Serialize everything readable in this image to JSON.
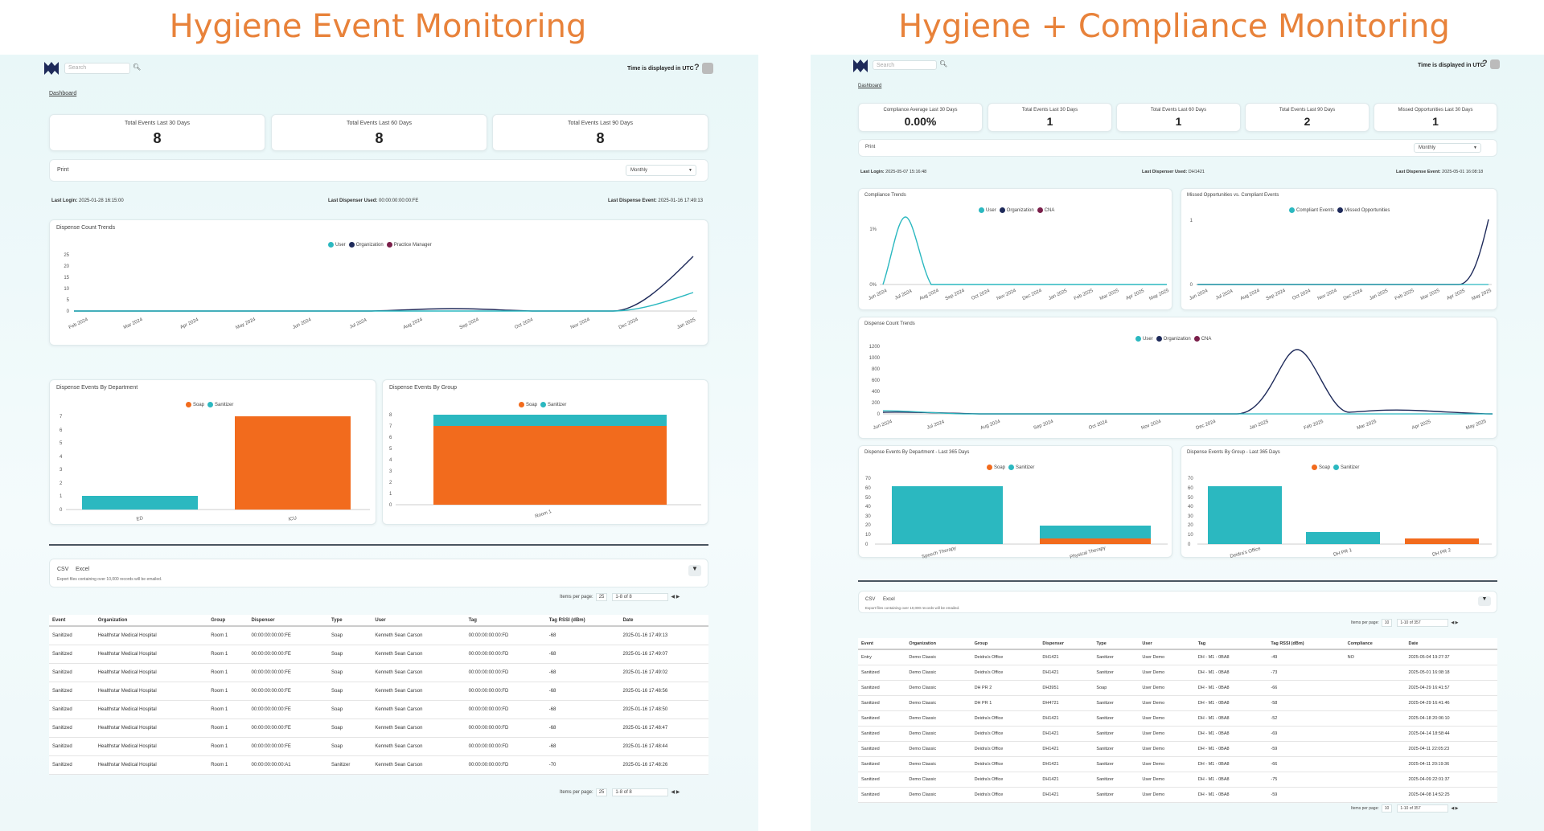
{
  "titles": {
    "left": "Hygiene Event Monitoring",
    "right": "Hygiene + Compliance Monitoring"
  },
  "colors": {
    "title": "#e8823a",
    "teal": "#2bb8c0",
    "navy": "#1e2a5a",
    "maroon": "#7a1f4a",
    "orange": "#f26b1d"
  },
  "left": {
    "search_placeholder": "Search",
    "utc": "Time is displayed in UTC",
    "help": "?",
    "breadcrumb": "Dashboard",
    "stats": [
      {
        "label": "Total Events Last 30 Days",
        "value": "8"
      },
      {
        "label": "Total Events Last 60 Days",
        "value": "8"
      },
      {
        "label": "Total Events Last 90 Days",
        "value": "8"
      }
    ],
    "print": "Print",
    "period": "Monthly",
    "last_login_label": "Last Login:",
    "last_login": "2025-01-28 16:15:00",
    "last_dispenser_label": "Last Dispenser Used:",
    "last_dispenser": "00:00:00:00:00:FE",
    "last_event_label": "Last Dispense Event:",
    "last_event": "2025-01-16 17:49:13",
    "trend": {
      "title": "Dispense Count Trends",
      "legend": [
        "User",
        "Organization",
        "Practice Manager"
      ],
      "yticks": [
        "25",
        "20",
        "15",
        "10",
        "5",
        "0"
      ],
      "xticks": [
        "Feb 2024",
        "Mar 2024",
        "Apr 2024",
        "May 2024",
        "Jun 2024",
        "Jul 2024",
        "Aug 2024",
        "Sep 2024",
        "Oct 2024",
        "Nov 2024",
        "Dec 2024",
        "Jan 2025"
      ]
    },
    "dept": {
      "title": "Dispense Events By Department",
      "legend": [
        "Soap",
        "Sanitizer"
      ],
      "yticks": [
        "7",
        "6",
        "5",
        "4",
        "3",
        "2",
        "1",
        "0"
      ],
      "categories": [
        "ED",
        "ICU"
      ]
    },
    "group": {
      "title": "Dispense Events By Group",
      "legend": [
        "Soap",
        "Sanitizer"
      ],
      "yticks": [
        "8",
        "7",
        "6",
        "5",
        "4",
        "3",
        "2",
        "1",
        "0"
      ],
      "categories": [
        "Room 1"
      ]
    },
    "export": {
      "csv": "CSV",
      "excel": "Excel",
      "note": "Export files containing over 10,000 records will be emailed."
    },
    "pager": {
      "label": "Items per page:",
      "size": "25",
      "range": "1-8 of 8"
    },
    "table": {
      "headers": [
        "Event",
        "Organization",
        "Group",
        "Dispenser",
        "Type",
        "User",
        "Tag",
        "Tag RSSI (dBm)",
        "Date"
      ],
      "rows": [
        [
          "Sanitized",
          "Healthstar Medical Hospital",
          "Room 1",
          "00:00:00:00:00:FE",
          "Soap",
          "Kenneth Sean Carson",
          "00:00:00:00:00:FD",
          "-68",
          "2025-01-16 17:49:13"
        ],
        [
          "Sanitized",
          "Healthstar Medical Hospital",
          "Room 1",
          "00:00:00:00:00:FE",
          "Soap",
          "Kenneth Sean Carson",
          "00:00:00:00:00:FD",
          "-68",
          "2025-01-16 17:49:07"
        ],
        [
          "Sanitized",
          "Healthstar Medical Hospital",
          "Room 1",
          "00:00:00:00:00:FE",
          "Soap",
          "Kenneth Sean Carson",
          "00:00:00:00:00:FD",
          "-68",
          "2025-01-16 17:49:02"
        ],
        [
          "Sanitized",
          "Healthstar Medical Hospital",
          "Room 1",
          "00:00:00:00:00:FE",
          "Soap",
          "Kenneth Sean Carson",
          "00:00:00:00:00:FD",
          "-68",
          "2025-01-16 17:48:56"
        ],
        [
          "Sanitized",
          "Healthstar Medical Hospital",
          "Room 1",
          "00:00:00:00:00:FE",
          "Soap",
          "Kenneth Sean Carson",
          "00:00:00:00:00:FD",
          "-68",
          "2025-01-16 17:48:50"
        ],
        [
          "Sanitized",
          "Healthstar Medical Hospital",
          "Room 1",
          "00:00:00:00:00:FE",
          "Soap",
          "Kenneth Sean Carson",
          "00:00:00:00:00:FD",
          "-68",
          "2025-01-16 17:48:47"
        ],
        [
          "Sanitized",
          "Healthstar Medical Hospital",
          "Room 1",
          "00:00:00:00:00:FE",
          "Soap",
          "Kenneth Sean Carson",
          "00:00:00:00:00:FD",
          "-68",
          "2025-01-16 17:48:44"
        ],
        [
          "Sanitized",
          "Healthstar Medical Hospital",
          "Room 1",
          "00:00:00:00:00:A1",
          "Sanitizer",
          "Kenneth Sean Carson",
          "00:00:00:00:00:FD",
          "-70",
          "2025-01-16 17:48:26"
        ]
      ]
    }
  },
  "right": {
    "search_placeholder": "Search",
    "utc": "Time is displayed in UTC",
    "help": "?",
    "breadcrumb": "Dashboard",
    "stats": [
      {
        "label": "Compliance Average Last 30 Days",
        "value": "0.00%"
      },
      {
        "label": "Total Events Last 30 Days",
        "value": "1"
      },
      {
        "label": "Total Events Last 60 Days",
        "value": "1"
      },
      {
        "label": "Total Events Last 90 Days",
        "value": "2"
      },
      {
        "label": "Missed Opportunities Last 30 Days",
        "value": "1"
      }
    ],
    "print": "Print",
    "period": "Monthly",
    "last_login_label": "Last Login:",
    "last_login": "2025-05-07 15:16:48",
    "last_dispenser_label": "Last Dispenser Used:",
    "last_dispenser": "DH1421",
    "last_event_label": "Last Dispense Event:",
    "last_event": "2025-05-01 16:08:18",
    "compliance": {
      "title": "Compliance Trends",
      "legend": [
        "User",
        "Organization",
        "CNA"
      ],
      "yticks": [
        "1%",
        "0%"
      ],
      "xticks": [
        "Jun 2024",
        "Jul 2024",
        "Aug 2024",
        "Sep 2024",
        "Oct 2024",
        "Nov 2024",
        "Dec 2024",
        "Jan 2025",
        "Feb 2025",
        "Mar 2025",
        "Apr 2025",
        "May 2025"
      ]
    },
    "missed": {
      "title": "Missed Opportunities vs. Compliant Events",
      "legend": [
        "Compliant Events",
        "Missed Opportunities"
      ],
      "yticks": [
        "1",
        "0"
      ],
      "xticks": [
        "Jun 2024",
        "Jul 2024",
        "Aug 2024",
        "Sep 2024",
        "Oct 2024",
        "Nov 2024",
        "Dec 2024",
        "Jan 2025",
        "Feb 2025",
        "Mar 2025",
        "Apr 2025",
        "May 2025"
      ]
    },
    "trend": {
      "title": "Dispense Count Trends",
      "legend": [
        "User",
        "Organization",
        "CNA"
      ],
      "yticks": [
        "1200",
        "1000",
        "800",
        "600",
        "400",
        "200",
        "0"
      ],
      "xticks": [
        "Jun 2024",
        "Jul 2024",
        "Aug 2024",
        "Sep 2024",
        "Oct 2024",
        "Nov 2024",
        "Dec 2024",
        "Jan 2025",
        "Feb 2025",
        "Mar 2025",
        "Apr 2025",
        "May 2025"
      ]
    },
    "dept": {
      "title": "Dispense Events By Department - Last 365 Days",
      "legend": [
        "Soap",
        "Sanitizer"
      ],
      "yticks": [
        "70",
        "60",
        "50",
        "40",
        "30",
        "20",
        "10",
        "0"
      ],
      "categories": [
        "Speech Therapy",
        "Physical Therapy"
      ]
    },
    "group": {
      "title": "Dispense Events By Group - Last 365 Days",
      "legend": [
        "Soap",
        "Sanitizer"
      ],
      "yticks": [
        "70",
        "60",
        "50",
        "40",
        "30",
        "20",
        "10",
        "0"
      ],
      "categories": [
        "Deidra's Office",
        "DH PR 1",
        "DH PR 2"
      ]
    },
    "export": {
      "csv": "CSV",
      "excel": "Excel",
      "note": "Export files containing over 10,000 records will be emailed."
    },
    "pager": {
      "label": "Items per page:",
      "size": "10",
      "range": "1-10 of 357"
    },
    "table": {
      "headers": [
        "Event",
        "Organization",
        "Group",
        "Dispenser",
        "Type",
        "User",
        "Tag",
        "Tag RSSI (dBm)",
        "Compliance",
        "Date"
      ],
      "rows": [
        [
          "Entry",
          "Demo Classic",
          "Deidra's Office",
          "DH1421",
          "Sanitizer",
          "User Demo",
          "DH - M1 - 0BA8",
          "-49",
          "NO",
          "2025-05-04 19:27:37"
        ],
        [
          "Sanitized",
          "Demo Classic",
          "Deidra's Office",
          "DH1421",
          "Sanitizer",
          "User Demo",
          "DH - M1 - 0BA8",
          "-73",
          "",
          "2025-05-01 16:08:18"
        ],
        [
          "Sanitized",
          "Demo Classic",
          "DH PR 2",
          "DH3951",
          "Soap",
          "User Demo",
          "DH - M1 - 0BA8",
          "-66",
          "",
          "2025-04-29 16:41:57"
        ],
        [
          "Sanitized",
          "Demo Classic",
          "DH PR 1",
          "DH4721",
          "Sanitizer",
          "User Demo",
          "DH - M1 - 0BA8",
          "-58",
          "",
          "2025-04-29 16:41:46"
        ],
        [
          "Sanitized",
          "Demo Classic",
          "Deidra's Office",
          "DH1421",
          "Sanitizer",
          "User Demo",
          "DH - M1 - 0BA8",
          "-52",
          "",
          "2025-04-18 20:06:10"
        ],
        [
          "Sanitized",
          "Demo Classic",
          "Deidra's Office",
          "DH1421",
          "Sanitizer",
          "User Demo",
          "DH - M1 - 0BA8",
          "-69",
          "",
          "2025-04-14 18:58:44"
        ],
        [
          "Sanitized",
          "Demo Classic",
          "Deidra's Office",
          "DH1421",
          "Sanitizer",
          "User Demo",
          "DH - M1 - 0BA8",
          "-59",
          "",
          "2025-04-11 22:05:23"
        ],
        [
          "Sanitized",
          "Demo Classic",
          "Deidra's Office",
          "DH1421",
          "Sanitizer",
          "User Demo",
          "DH - M1 - 0BA8",
          "-66",
          "",
          "2025-04-11 20:19:36"
        ],
        [
          "Sanitized",
          "Demo Classic",
          "Deidra's Office",
          "DH1421",
          "Sanitizer",
          "User Demo",
          "DH - M1 - 0BA8",
          "-75",
          "",
          "2025-04-09 22:01:37"
        ],
        [
          "Sanitized",
          "Demo Classic",
          "Deidra's Office",
          "DH1421",
          "Sanitizer",
          "User Demo",
          "DH - M1 - 0BA8",
          "-59",
          "",
          "2025-04-08 14:52:25"
        ]
      ]
    }
  },
  "chart_data": [
    {
      "type": "line",
      "title": "Dispense Count Trends",
      "x": [
        "Feb 2024",
        "Mar 2024",
        "Apr 2024",
        "May 2024",
        "Jun 2024",
        "Jul 2024",
        "Aug 2024",
        "Sep 2024",
        "Oct 2024",
        "Nov 2024",
        "Dec 2024",
        "Jan 2025"
      ],
      "ylim": [
        0,
        25
      ],
      "series": [
        {
          "name": "User",
          "values": [
            0,
            0,
            0,
            0,
            0,
            0,
            0,
            0,
            0,
            0,
            0,
            8
          ]
        },
        {
          "name": "Organization",
          "values": [
            0,
            0,
            0,
            0,
            0,
            0,
            0,
            1,
            1,
            0,
            0,
            23
          ]
        },
        {
          "name": "Practice Manager",
          "values": [
            0,
            0,
            0,
            0,
            0,
            0,
            0,
            0,
            0,
            0,
            0,
            0
          ]
        }
      ]
    },
    {
      "type": "bar",
      "title": "Dispense Events By Department",
      "categories": [
        "ED",
        "ICU"
      ],
      "ylim": [
        0,
        7
      ],
      "series": [
        {
          "name": "Soap",
          "values": [
            0,
            7
          ]
        },
        {
          "name": "Sanitizer",
          "values": [
            1,
            0
          ]
        }
      ]
    },
    {
      "type": "bar",
      "title": "Dispense Events By Group",
      "categories": [
        "Room 1"
      ],
      "ylim": [
        0,
        8
      ],
      "series": [
        {
          "name": "Soap",
          "values": [
            7
          ]
        },
        {
          "name": "Sanitizer",
          "values": [
            1
          ]
        }
      ]
    },
    {
      "type": "line",
      "title": "Compliance Trends",
      "x": [
        "Jun 2024",
        "Jul 2024",
        "Aug 2024",
        "Sep 2024",
        "Oct 2024",
        "Nov 2024",
        "Dec 2024",
        "Jan 2025",
        "Feb 2025",
        "Mar 2025",
        "Apr 2025",
        "May 2025"
      ],
      "ylim": [
        0,
        1
      ],
      "series": [
        {
          "name": "User",
          "values": [
            0,
            1,
            0,
            0,
            0,
            0,
            0,
            0,
            0,
            0,
            0,
            0
          ]
        },
        {
          "name": "Organization",
          "values": [
            0,
            0,
            0,
            0,
            0,
            0,
            0,
            0,
            0,
            0,
            0,
            0
          ]
        },
        {
          "name": "CNA",
          "values": [
            0,
            0,
            0,
            0,
            0,
            0,
            0,
            0,
            0,
            0,
            0,
            0
          ]
        }
      ]
    },
    {
      "type": "line",
      "title": "Missed Opportunities vs. Compliant Events",
      "x": [
        "Jun 2024",
        "Jul 2024",
        "Aug 2024",
        "Sep 2024",
        "Oct 2024",
        "Nov 2024",
        "Dec 2024",
        "Jan 2025",
        "Feb 2025",
        "Mar 2025",
        "Apr 2025",
        "May 2025"
      ],
      "ylim": [
        0,
        1
      ],
      "series": [
        {
          "name": "Compliant Events",
          "values": [
            0,
            0,
            0,
            0,
            0,
            0,
            0,
            0,
            0,
            0,
            0,
            0
          ]
        },
        {
          "name": "Missed Opportunities",
          "values": [
            0,
            0,
            0,
            0,
            0,
            0,
            0,
            0,
            0,
            0,
            0,
            1
          ]
        }
      ]
    },
    {
      "type": "line",
      "title": "Dispense Count Trends",
      "x": [
        "Jun 2024",
        "Jul 2024",
        "Aug 2024",
        "Sep 2024",
        "Oct 2024",
        "Nov 2024",
        "Dec 2024",
        "Jan 2025",
        "Feb 2025",
        "Mar 2025",
        "Apr 2025",
        "May 2025"
      ],
      "ylim": [
        0,
        1200
      ],
      "series": [
        {
          "name": "User",
          "values": [
            30,
            0,
            0,
            0,
            0,
            0,
            0,
            0,
            0,
            0,
            0,
            0
          ]
        },
        {
          "name": "Organization",
          "values": [
            0,
            0,
            0,
            0,
            0,
            0,
            0,
            0,
            1160,
            40,
            60,
            0
          ]
        },
        {
          "name": "CNA",
          "values": [
            0,
            0,
            0,
            0,
            0,
            0,
            0,
            0,
            0,
            0,
            0,
            0
          ]
        }
      ]
    },
    {
      "type": "bar",
      "title": "Dispense Events By Department - Last 365 Days",
      "categories": [
        "Speech Therapy",
        "Physical Therapy"
      ],
      "ylim": [
        0,
        70
      ],
      "series": [
        {
          "name": "Soap",
          "values": [
            0,
            6
          ]
        },
        {
          "name": "Sanitizer",
          "values": [
            61,
            13
          ]
        }
      ]
    },
    {
      "type": "bar",
      "title": "Dispense Events By Group - Last 365 Days",
      "categories": [
        "Deidra's Office",
        "DH PR 1",
        "DH PR 2"
      ],
      "ylim": [
        0,
        70
      ],
      "series": [
        {
          "name": "Soap",
          "values": [
            0,
            0,
            6
          ]
        },
        {
          "name": "Sanitizer",
          "values": [
            61,
            13,
            0
          ]
        }
      ]
    }
  ]
}
